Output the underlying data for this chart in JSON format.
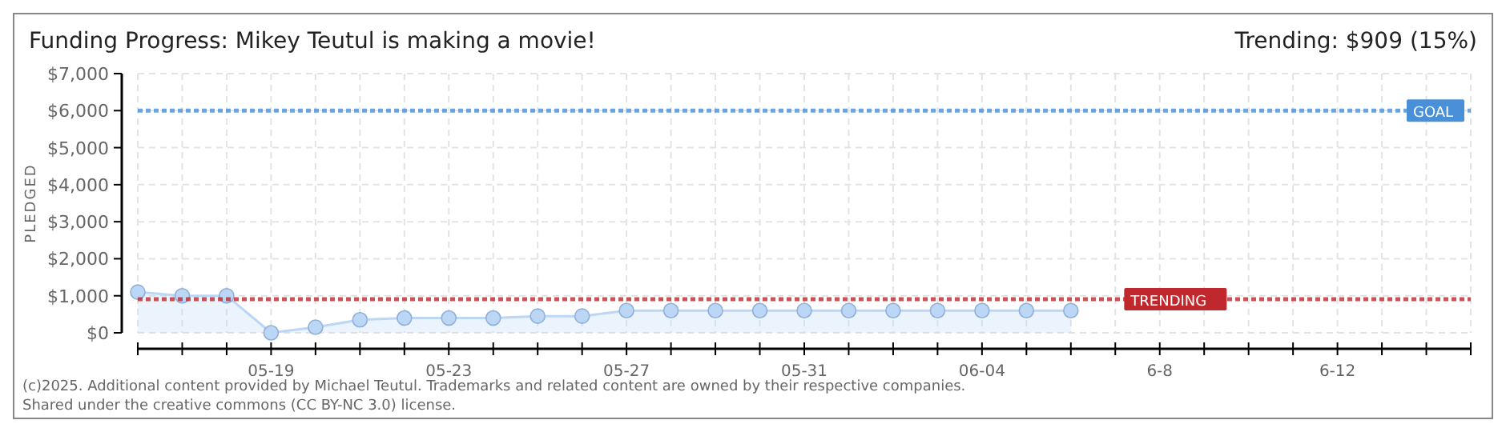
{
  "chart_data": {
    "type": "area",
    "title": "Funding Progress: Mikey Teutul is making a movie!",
    "subtitle": "Trending:  $909 (15%)",
    "ylabel": "PLEDGED",
    "x": [
      "--05-16",
      "--05-17",
      "--05-18",
      "--05-19",
      "--05-20",
      "--05-21",
      "--05-22",
      "--05-23",
      "--05-24",
      "--05-25",
      "--05-26",
      "--05-27",
      "--05-28",
      "--05-29",
      "--05-30",
      "--05-31",
      "--06-01",
      "--06-02",
      "--06-03",
      "--06-04",
      "--06-05",
      "--06-06"
    ],
    "series": [
      {
        "color": "#bcd6f5",
        "values": [
          1100,
          1000,
          1000,
          0,
          150,
          350,
          400,
          400,
          400,
          450,
          450,
          600,
          600,
          600,
          600,
          600,
          600,
          600,
          600,
          600,
          600,
          600
        ]
      }
    ],
    "xlim": [
      "--05-16",
      "--06-15"
    ],
    "xticks": [
      {
        "value": "--05-19",
        "label": "05-19"
      },
      {
        "value": "--05-23",
        "label": "05-23"
      },
      {
        "value": "--05-27",
        "label": "05-27"
      },
      {
        "value": "--05-31",
        "label": "05-31"
      },
      {
        "value": "--06-04",
        "label": "06-04"
      },
      {
        "value": "--06-08",
        "label": "6-8"
      },
      {
        "value": "--06-12",
        "label": "6-12"
      }
    ],
    "ylim": [
      0,
      7000
    ],
    "yticks": [
      {
        "value": 0,
        "label": "$0"
      },
      {
        "value": 1000,
        "label": "$1,000"
      },
      {
        "value": 2000,
        "label": "$2,000"
      },
      {
        "value": 3000,
        "label": "$3,000"
      },
      {
        "value": 4000,
        "label": "$4,000"
      },
      {
        "value": 5000,
        "label": "$5,000"
      },
      {
        "value": 6000,
        "label": "$6,000"
      },
      {
        "value": 7000,
        "label": "$7,000"
      }
    ],
    "ref_lines": [
      {
        "axis": "y",
        "value": 6000,
        "label": "GOAL",
        "color": "#4a90d9",
        "line_style": "dotted"
      },
      {
        "axis": "y",
        "value": 909,
        "label": "TRENDING",
        "color": "#c0282d",
        "line_style": "dotted"
      }
    ],
    "grid": true,
    "marker": "circle",
    "annotations": [
      "(c)2025. Additional content provided by Michael Teutul. Trademarks and related content are owned by their respective companies.",
      "Shared under the creative commons (CC BY-NC 3.0) license."
    ]
  }
}
